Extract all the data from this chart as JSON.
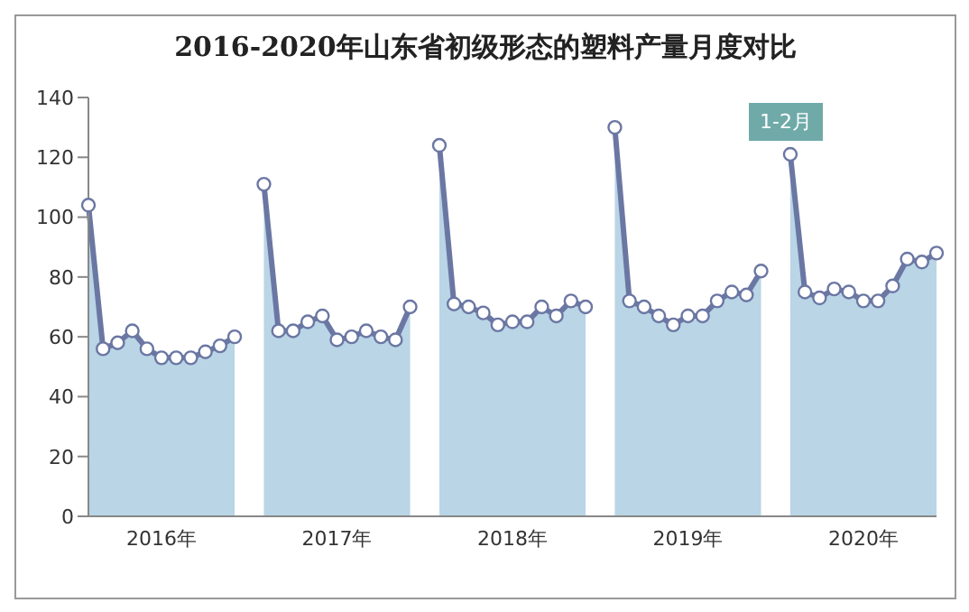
{
  "chart_data": {
    "type": "area",
    "title": "2016-2020年山东省初级形态的塑料产量月度对比",
    "categories": [
      null,
      null,
      null,
      null,
      null,
      "2016年",
      null,
      null,
      null,
      null,
      null,
      null,
      null,
      null,
      null,
      null,
      null,
      "2017年",
      null,
      null,
      null,
      null,
      null,
      null,
      null,
      null,
      null,
      null,
      null,
      "2018年",
      null,
      null,
      null,
      null,
      null,
      null,
      null,
      null,
      null,
      null,
      null,
      "2019年",
      null,
      null,
      null,
      null,
      null,
      null,
      null,
      null,
      null,
      null,
      null,
      "2020年",
      null,
      null,
      null,
      null,
      null
    ],
    "series": [
      {
        "color": "#6b77a3",
        "values": [
          104,
          56,
          58,
          62,
          56,
          53,
          53,
          53,
          55,
          57,
          60,
          null,
          111,
          62,
          62,
          65,
          67,
          59,
          60,
          62,
          60,
          59,
          70,
          null,
          124,
          71,
          70,
          68,
          64,
          65,
          65,
          70,
          67,
          72,
          70,
          null,
          130,
          72,
          70,
          67,
          64,
          67,
          67,
          72,
          75,
          74,
          82,
          null,
          121,
          75,
          73,
          76,
          75,
          72,
          72,
          77,
          86,
          85,
          88
        ]
      }
    ],
    "ylim": [
      0,
      140
    ],
    "yticks": [
      0,
      20,
      40,
      60,
      80,
      100,
      120,
      140
    ],
    "marker": "circle",
    "annotations": [
      "1-2月"
    ]
  }
}
